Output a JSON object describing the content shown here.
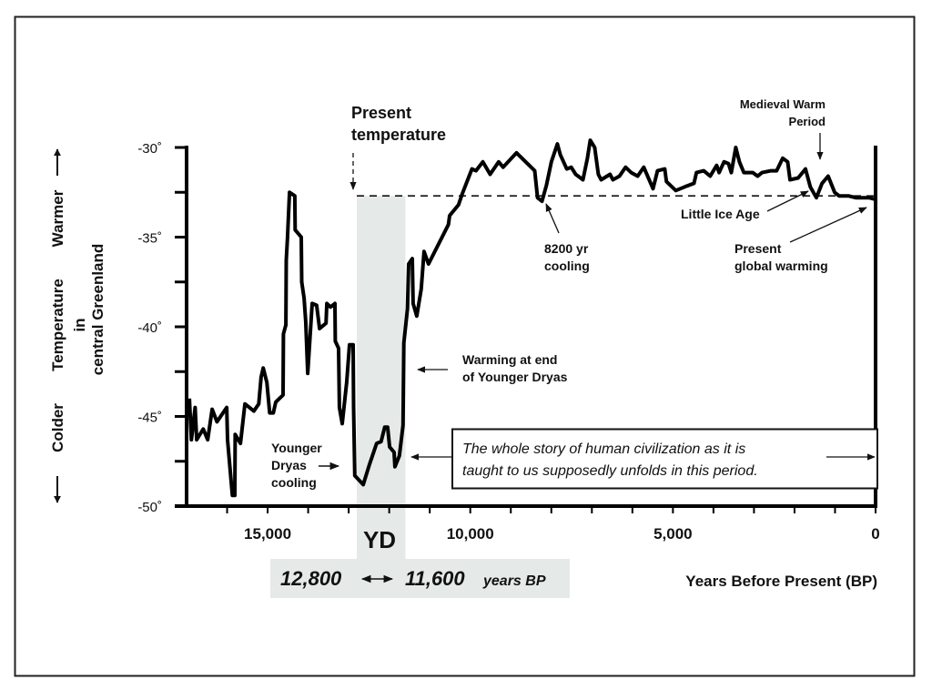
{
  "chart_data": {
    "type": "line",
    "title": "",
    "xlabel": "Years Before Present (BP)",
    "ylabel": "Temperature in central Greenland",
    "ylabel_warmer": "Warmer",
    "ylabel_colder": "Colder",
    "ylabel_line1": "Temperature",
    "ylabel_line2": "in",
    "ylabel_line3": "central Greenland",
    "xlim": [
      17000,
      0
    ],
    "ylim": [
      -50,
      -30
    ],
    "x_ticks": [
      15000,
      10000,
      5000,
      0
    ],
    "x_tick_labels": [
      "15,000",
      "10,000",
      "5,000",
      "0"
    ],
    "y_ticks": [
      -30,
      -35,
      -40,
      -45,
      -50
    ],
    "y_tick_labels": [
      "-30˚",
      "-35˚",
      "-40˚",
      "-45˚",
      "-50˚"
    ],
    "grid": false,
    "present_temperature": -32.7,
    "present_temperature_label": "Present temperature",
    "shaded_band": {
      "from": 12800,
      "to": 11600,
      "label": "YD",
      "range_from": "12,800",
      "range_to": "11,600",
      "range_unit": "years BP",
      "color": "#e5eae8"
    },
    "series": [
      {
        "color": "#000000",
        "x": [
          16930,
          16880,
          16790,
          16750,
          16590,
          16480,
          16370,
          16250,
          16010,
          15990,
          15870,
          15810,
          15800,
          15670,
          15560,
          15340,
          15220,
          15160,
          15110,
          15020,
          14950,
          14860,
          14800,
          14620,
          14610,
          14550,
          14540,
          14510,
          14460,
          14330,
          14320,
          14170,
          14160,
          14100,
          14060,
          14010,
          13900,
          13790,
          13720,
          13560,
          13540,
          13450,
          13340,
          13330,
          13250,
          13230,
          13160,
          13050,
          12980,
          12890,
          12880,
          12850,
          12640,
          12490,
          12310,
          12200,
          12110,
          12040,
          11990,
          11880,
          11860,
          11750,
          11660,
          11640,
          11550,
          11520,
          11430,
          11410,
          11320,
          11210,
          11140,
          11030,
          10540,
          10510,
          10290,
          10200,
          9960,
          9860,
          9690,
          9510,
          9300,
          9190,
          8860,
          8410,
          8340,
          8230,
          8120,
          8000,
          7850,
          7780,
          7620,
          7510,
          7400,
          7220,
          7110,
          7040,
          6930,
          6840,
          6770,
          6550,
          6480,
          6320,
          6170,
          6030,
          5870,
          5720,
          5490,
          5380,
          5200,
          5160,
          4930,
          4710,
          4480,
          4420,
          4240,
          4080,
          3920,
          3860,
          3740,
          3630,
          3560,
          3450,
          3360,
          3250,
          3030,
          2910,
          2800,
          2580,
          2440,
          2290,
          2170,
          2110,
          1910,
          1730,
          1610,
          1460,
          1320,
          1170,
          1010,
          900,
          670,
          490,
          430,
          160,
          0
        ],
        "y": [
          -44.0,
          -46.3,
          -44.5,
          -46.3,
          -45.7,
          -46.3,
          -44.6,
          -45.3,
          -44.5,
          -46.3,
          -49.4,
          -49.4,
          -46.0,
          -46.5,
          -44.3,
          -44.7,
          -44.3,
          -42.8,
          -42.3,
          -43.1,
          -44.8,
          -44.8,
          -44.2,
          -43.8,
          -40.4,
          -39.9,
          -36.3,
          -35.0,
          -32.5,
          -32.7,
          -34.6,
          -35.0,
          -37.5,
          -38.4,
          -39.7,
          -42.6,
          -38.7,
          -38.8,
          -40.1,
          -39.8,
          -38.7,
          -38.9,
          -38.7,
          -40.8,
          -41.2,
          -44.5,
          -45.4,
          -43.1,
          -41.0,
          -41.0,
          -44.5,
          -48.3,
          -48.8,
          -47.7,
          -46.5,
          -46.4,
          -45.6,
          -45.6,
          -46.7,
          -47.0,
          -47.8,
          -47.2,
          -45.5,
          -40.9,
          -39.0,
          -36.5,
          -36.2,
          -38.7,
          -39.4,
          -37.9,
          -35.8,
          -36.5,
          -34.3,
          -33.8,
          -33.2,
          -32.6,
          -31.2,
          -31.3,
          -30.8,
          -31.5,
          -30.8,
          -31.1,
          -30.3,
          -31.3,
          -32.8,
          -33.0,
          -32.1,
          -30.8,
          -29.8,
          -30.4,
          -31.2,
          -31.1,
          -31.5,
          -31.8,
          -30.6,
          -29.6,
          -30.0,
          -31.5,
          -31.8,
          -31.5,
          -31.8,
          -31.6,
          -31.1,
          -31.4,
          -31.6,
          -31.1,
          -32.3,
          -31.3,
          -31.2,
          -31.9,
          -32.4,
          -32.2,
          -32.0,
          -31.4,
          -31.3,
          -31.6,
          -31.0,
          -31.4,
          -30.8,
          -30.9,
          -31.4,
          -30.0,
          -30.8,
          -31.4,
          -31.4,
          -31.6,
          -31.4,
          -31.3,
          -31.3,
          -30.6,
          -30.8,
          -31.8,
          -31.7,
          -31.2,
          -32.2,
          -32.8,
          -32.0,
          -31.6,
          -32.5,
          -32.7,
          -32.7,
          -32.8,
          -32.8,
          -32.8,
          -32.9
        ]
      }
    ],
    "annotations": {
      "medieval_warm_period": "Medieval Warm Period",
      "medieval_line1": "Medieval Warm",
      "medieval_line2": "Period",
      "little_ice_age": "Little Ice Age",
      "cooling_8200_line1": "8200 yr",
      "cooling_8200_line2": "cooling",
      "present_warming_line1": "Present",
      "present_warming_line2": "global warming",
      "yd_warming_line1": "Warming at end",
      "yd_warming_line2": "of Younger Dryas",
      "yd_cooling_line1": "Younger",
      "yd_cooling_line2": "Dryas",
      "yd_cooling_line3": "cooling",
      "present_temp_line1": "Present",
      "present_temp_line2": "temperature",
      "civilization_line1": "The whole story of human civilization as it is",
      "civilization_line2": "taught to us supposedly unfolds in this period."
    }
  }
}
